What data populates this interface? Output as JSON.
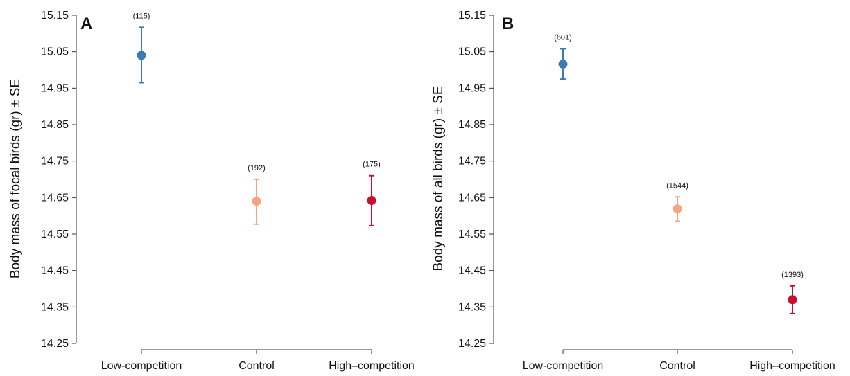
{
  "chart_data": [
    {
      "type": "scatter",
      "panel_label": "A",
      "ylabel": "Body mass of focal birds (gr) ± SE",
      "ylim": [
        14.25,
        15.15
      ],
      "yticks": [
        "14.25",
        "14.35",
        "14.45",
        "14.55",
        "14.65",
        "14.75",
        "14.85",
        "14.95",
        "15.05",
        "15.15"
      ],
      "categories": [
        "Low-competition",
        "Control",
        "High–competition"
      ],
      "means": [
        15.04,
        14.64,
        14.642
      ],
      "se_low": [
        14.965,
        14.577,
        14.573
      ],
      "se_high": [
        15.117,
        14.7,
        14.71
      ],
      "n_labels": [
        "(115)",
        "(192)",
        "(175)"
      ],
      "colors": [
        "#3a7ab5",
        "#f4a582",
        "#c8102e"
      ]
    },
    {
      "type": "scatter",
      "panel_label": "B",
      "ylabel": "Body mass of all birds (gr) ± SE",
      "ylim": [
        14.25,
        15.15
      ],
      "yticks": [
        "14.25",
        "14.35",
        "14.45",
        "14.55",
        "14.65",
        "14.75",
        "14.85",
        "14.95",
        "15.05",
        "15.15"
      ],
      "categories": [
        "Low-competition",
        "Control",
        "High–competition"
      ],
      "means": [
        15.016,
        14.619,
        14.37
      ],
      "se_low": [
        14.975,
        14.585,
        14.332
      ],
      "se_high": [
        15.058,
        14.652,
        14.408
      ],
      "n_labels": [
        "(601)",
        "(1544)",
        "(1393)"
      ],
      "colors": [
        "#3a7ab5",
        "#f4a582",
        "#c8102e"
      ]
    }
  ]
}
